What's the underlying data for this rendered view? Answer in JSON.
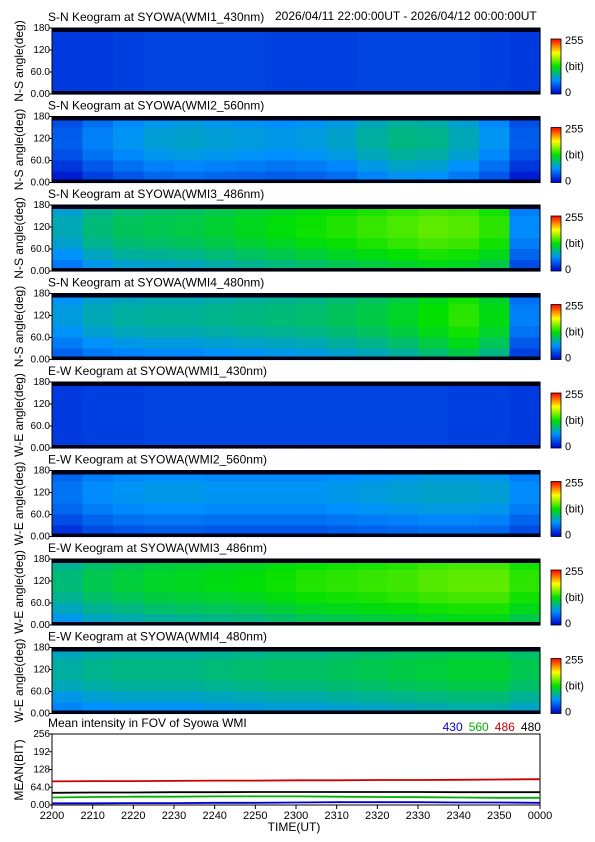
{
  "header": {
    "datetime_range": "2026/04/11 22:00:00UT - 2026/04/12 00:00:00UT"
  },
  "colorbar": {
    "max_label": "255",
    "unit_label": "(bit)",
    "min_label": "0"
  },
  "chart_data": [
    {
      "type": "heatmap",
      "title": "S-N Keogram at SYOWA(WMI1_430nm)",
      "ylabel": "N-S angle(deg)",
      "yticks": [
        "180",
        "120",
        "60.0",
        "0.00"
      ],
      "ylim": [
        0,
        180
      ],
      "clim": [
        0,
        255
      ],
      "intensity": "low",
      "profile": [
        0.1,
        0.1,
        0.11,
        0.12,
        0.12,
        0.12,
        0.12,
        0.11,
        0.11,
        0.11,
        0.12,
        0.12,
        0.12,
        0.12,
        0.11,
        0.1
      ]
    },
    {
      "type": "heatmap",
      "title": "S-N Keogram at SYOWA(WMI2_560nm)",
      "ylabel": "N-S angle(deg)",
      "yticks": [
        "180",
        "120",
        "60.0",
        "0.00"
      ],
      "ylim": [
        0,
        180
      ],
      "clim": [
        0,
        255
      ],
      "intensity": "low-moderate",
      "profile": [
        0.12,
        0.18,
        0.22,
        0.25,
        0.26,
        0.25,
        0.24,
        0.23,
        0.24,
        0.26,
        0.3,
        0.33,
        0.32,
        0.28,
        0.22,
        0.12
      ]
    },
    {
      "type": "heatmap",
      "title": "S-N Keogram at SYOWA(WMI3_486nm)",
      "ylabel": "N-S angle(deg)",
      "yticks": [
        "180",
        "120",
        "60.0",
        "0.00"
      ],
      "ylim": [
        0,
        180
      ],
      "clim": [
        0,
        255
      ],
      "intensity": "moderate",
      "profile": [
        0.28,
        0.34,
        0.37,
        0.38,
        0.39,
        0.41,
        0.43,
        0.45,
        0.47,
        0.49,
        0.51,
        0.53,
        0.55,
        0.54,
        0.5,
        0.2
      ]
    },
    {
      "type": "heatmap",
      "title": "S-N Keogram at SYOWA(WMI4_480nm)",
      "ylabel": "N-S angle(deg)",
      "yticks": [
        "180",
        "120",
        "60.0",
        "0.00"
      ],
      "ylim": [
        0,
        180
      ],
      "clim": [
        0,
        255
      ],
      "intensity": "moderate",
      "profile": [
        0.24,
        0.28,
        0.3,
        0.31,
        0.31,
        0.32,
        0.33,
        0.34,
        0.35,
        0.37,
        0.39,
        0.42,
        0.46,
        0.5,
        0.44,
        0.18
      ]
    },
    {
      "type": "heatmap",
      "title": "E-W Keogram at SYOWA(WMI1_430nm)",
      "ylabel": "W-E angle(deg)",
      "yticks": [
        "180",
        "120",
        "60.0",
        "0.00"
      ],
      "ylim": [
        0,
        180
      ],
      "clim": [
        0,
        255
      ],
      "intensity": "low",
      "profile": [
        0.1,
        0.11,
        0.11,
        0.12,
        0.12,
        0.12,
        0.12,
        0.12,
        0.12,
        0.12,
        0.12,
        0.12,
        0.12,
        0.11,
        0.11,
        0.1
      ]
    },
    {
      "type": "heatmap",
      "title": "E-W Keogram at SYOWA(WMI2_560nm)",
      "ylabel": "W-E angle(deg)",
      "yticks": [
        "180",
        "120",
        "60.0",
        "0.00"
      ],
      "ylim": [
        0,
        180
      ],
      "clim": [
        0,
        255
      ],
      "intensity": "low-moderate",
      "profile": [
        0.16,
        0.2,
        0.22,
        0.23,
        0.23,
        0.22,
        0.22,
        0.22,
        0.22,
        0.23,
        0.24,
        0.25,
        0.26,
        0.26,
        0.25,
        0.2
      ]
    },
    {
      "type": "heatmap",
      "title": "E-W Keogram at SYOWA(WMI3_486nm)",
      "ylabel": "W-E angle(deg)",
      "yticks": [
        "180",
        "120",
        "60.0",
        "0.00"
      ],
      "ylim": [
        0,
        180
      ],
      "clim": [
        0,
        255
      ],
      "intensity": "moderate",
      "profile": [
        0.34,
        0.38,
        0.4,
        0.42,
        0.43,
        0.44,
        0.45,
        0.47,
        0.49,
        0.5,
        0.51,
        0.52,
        0.54,
        0.55,
        0.55,
        0.5
      ]
    },
    {
      "type": "heatmap",
      "title": "E-W Keogram at SYOWA(WMI4_480nm)",
      "ylabel": "W-E angle(deg)",
      "yticks": [
        "180",
        "120",
        "60.0",
        "0.00"
      ],
      "ylim": [
        0,
        180
      ],
      "clim": [
        0,
        255
      ],
      "intensity": "moderate",
      "profile": [
        0.3,
        0.32,
        0.33,
        0.33,
        0.33,
        0.34,
        0.35,
        0.36,
        0.36,
        0.37,
        0.38,
        0.39,
        0.4,
        0.41,
        0.41,
        0.38
      ]
    },
    {
      "type": "line",
      "title": "Mean intensity in FOV of Syowa WMI",
      "ylabel": "MEAN(BIT)",
      "xlabel": "TIME(UT)",
      "x_ticks": [
        "2200",
        "2210",
        "2220",
        "2230",
        "2240",
        "2250",
        "2300",
        "2310",
        "2320",
        "2330",
        "2340",
        "2350",
        "0000"
      ],
      "x_minutes": [
        0,
        120
      ],
      "yticks": [
        "256",
        "192",
        "128",
        "64.0",
        "0.00"
      ],
      "ylim": [
        0,
        256
      ],
      "legend": "top-right",
      "series": [
        {
          "name": "430",
          "color": "#0000cc",
          "x": [
            0,
            10,
            20,
            30,
            40,
            50,
            60,
            70,
            80,
            90,
            100,
            110,
            120
          ],
          "values": [
            6,
            6,
            7,
            7,
            8,
            8,
            9,
            10,
            10,
            10,
            9,
            9,
            8
          ]
        },
        {
          "name": "560",
          "color": "#00b000",
          "x": [
            0,
            10,
            20,
            30,
            40,
            50,
            60,
            70,
            80,
            90,
            100,
            110,
            120
          ],
          "values": [
            27,
            29,
            30,
            30,
            31,
            31,
            31,
            30,
            29,
            28,
            27,
            26,
            26
          ]
        },
        {
          "name": "486",
          "color": "#cc0000",
          "x": [
            0,
            10,
            20,
            30,
            40,
            50,
            60,
            70,
            80,
            90,
            100,
            110,
            120
          ],
          "values": [
            85,
            86,
            86,
            87,
            88,
            88,
            89,
            89,
            90,
            90,
            91,
            92,
            93
          ]
        },
        {
          "name": "480",
          "color": "#000000",
          "x": [
            0,
            10,
            20,
            30,
            40,
            50,
            60,
            70,
            80,
            90,
            100,
            110,
            120
          ],
          "values": [
            44,
            45,
            45,
            46,
            46,
            47,
            47,
            47,
            47,
            47,
            46,
            46,
            46
          ]
        }
      ]
    }
  ]
}
